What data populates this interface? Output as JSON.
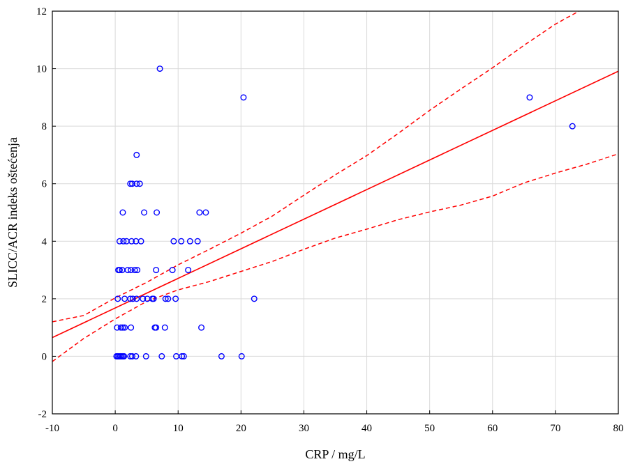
{
  "chart_data": {
    "type": "scatter",
    "title": "",
    "xlabel": "CRP / mg/L",
    "ylabel": "SLICC/ACR indeks oštećenja",
    "xlim": [
      -10,
      80
    ],
    "ylim": [
      -2,
      12
    ],
    "xticks": [
      -10,
      0,
      10,
      20,
      30,
      40,
      50,
      60,
      70,
      80
    ],
    "yticks": [
      -2,
      0,
      2,
      4,
      6,
      8,
      10,
      12
    ],
    "xtick_labels": [
      "-10",
      "0",
      "10",
      "20",
      "30",
      "40",
      "50",
      "60",
      "70",
      "80"
    ],
    "ytick_labels": [
      "-2",
      "0",
      "2",
      "4",
      "6",
      "8",
      "10",
      "12"
    ],
    "grid": true,
    "colors": {
      "points": "#0000ff",
      "fit": "#ff0000",
      "grid": "#d9d9d9"
    },
    "points": [
      [
        0.2,
        0
      ],
      [
        0.4,
        0
      ],
      [
        0.6,
        0
      ],
      [
        0.8,
        0
      ],
      [
        1.0,
        0
      ],
      [
        1.2,
        0
      ],
      [
        1.4,
        0
      ],
      [
        2.4,
        0
      ],
      [
        2.7,
        0
      ],
      [
        3.3,
        0
      ],
      [
        4.9,
        0
      ],
      [
        7.4,
        0
      ],
      [
        9.7,
        0
      ],
      [
        10.6,
        0
      ],
      [
        10.9,
        0
      ],
      [
        16.9,
        0
      ],
      [
        20.1,
        0
      ],
      [
        0.3,
        1
      ],
      [
        0.9,
        1
      ],
      [
        1.2,
        1
      ],
      [
        1.5,
        1
      ],
      [
        2.5,
        1
      ],
      [
        6.3,
        1
      ],
      [
        6.5,
        1
      ],
      [
        7.9,
        1
      ],
      [
        13.7,
        1
      ],
      [
        0.4,
        2
      ],
      [
        1.5,
        2
      ],
      [
        2.4,
        2
      ],
      [
        2.8,
        2
      ],
      [
        3.4,
        2
      ],
      [
        4.4,
        2
      ],
      [
        5.1,
        2
      ],
      [
        5.9,
        2
      ],
      [
        6.1,
        2
      ],
      [
        8.0,
        2
      ],
      [
        8.4,
        2
      ],
      [
        9.6,
        2
      ],
      [
        22.1,
        2
      ],
      [
        0.5,
        3
      ],
      [
        0.7,
        3
      ],
      [
        1.1,
        3
      ],
      [
        2.0,
        3
      ],
      [
        2.5,
        3
      ],
      [
        3.1,
        3
      ],
      [
        3.5,
        3
      ],
      [
        6.5,
        3
      ],
      [
        9.1,
        3
      ],
      [
        11.6,
        3
      ],
      [
        0.7,
        4
      ],
      [
        1.3,
        4
      ],
      [
        1.8,
        4
      ],
      [
        2.6,
        4
      ],
      [
        3.3,
        4
      ],
      [
        4.1,
        4
      ],
      [
        9.3,
        4
      ],
      [
        10.5,
        4
      ],
      [
        11.9,
        4
      ],
      [
        13.1,
        4
      ],
      [
        1.2,
        5
      ],
      [
        4.6,
        5
      ],
      [
        6.6,
        5
      ],
      [
        13.4,
        5
      ],
      [
        14.4,
        5
      ],
      [
        2.4,
        6
      ],
      [
        2.7,
        6
      ],
      [
        3.4,
        6
      ],
      [
        3.9,
        6
      ],
      [
        3.4,
        7
      ],
      [
        65.9,
        9
      ],
      [
        20.4,
        9
      ],
      [
        72.7,
        8
      ],
      [
        7.1,
        10
      ]
    ],
    "fit_line": {
      "intercept": 1.68,
      "slope": 0.1029
    },
    "ci_upper": [
      [
        -10,
        1.2
      ],
      [
        -5,
        1.42
      ],
      [
        0,
        2.03
      ],
      [
        5,
        2.57
      ],
      [
        10,
        3.18
      ],
      [
        15,
        3.72
      ],
      [
        20,
        4.28
      ],
      [
        25,
        4.88
      ],
      [
        30,
        5.6
      ],
      [
        35,
        6.31
      ],
      [
        40,
        6.98
      ],
      [
        45,
        7.75
      ],
      [
        50,
        8.55
      ],
      [
        55,
        9.3
      ],
      [
        60,
        10.03
      ],
      [
        65,
        10.81
      ],
      [
        70,
        11.55
      ],
      [
        75,
        12.15
      ]
    ],
    "ci_lower": [
      [
        -10,
        -0.18
      ],
      [
        -5,
        0.62
      ],
      [
        0,
        1.3
      ],
      [
        5,
        1.91
      ],
      [
        10,
        2.31
      ],
      [
        15,
        2.6
      ],
      [
        20,
        2.95
      ],
      [
        25,
        3.3
      ],
      [
        30,
        3.72
      ],
      [
        35,
        4.11
      ],
      [
        40,
        4.42
      ],
      [
        45,
        4.75
      ],
      [
        50,
        5.02
      ],
      [
        55,
        5.26
      ],
      [
        60,
        5.57
      ],
      [
        65,
        6.03
      ],
      [
        70,
        6.37
      ],
      [
        75,
        6.68
      ],
      [
        80,
        7.04
      ]
    ]
  }
}
